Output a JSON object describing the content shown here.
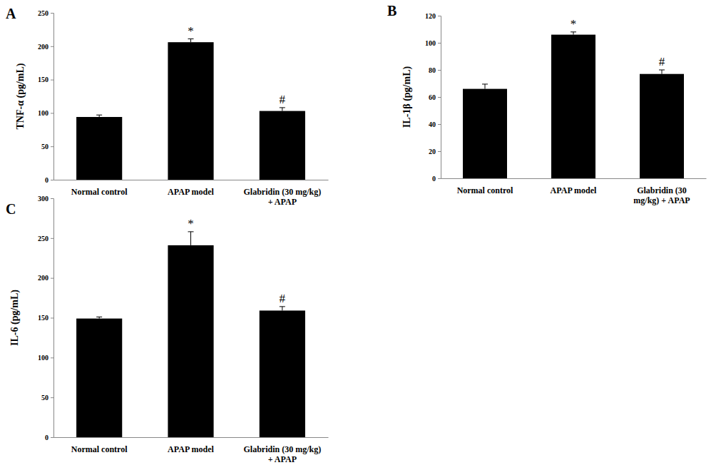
{
  "chart_data": [
    {
      "type": "bar",
      "title": "A",
      "y_label": "TNF-α (pg/mL)",
      "categories": [
        "Normal control",
        "APAP model",
        "Glabridin (30 mg/kg)\n+ APAP"
      ],
      "values": [
        94,
        206,
        103
      ],
      "errors": [
        3,
        5,
        5
      ],
      "annotations": [
        null,
        "*",
        "#"
      ],
      "color": "#000000",
      "ylim": [
        0,
        250
      ],
      "yticks": [
        0,
        50,
        100,
        150,
        200,
        250
      ],
      "grid": false
    },
    {
      "type": "bar",
      "title": "B",
      "y_label": "IL-1β (pg/mL)",
      "categories": [
        "Normal control",
        "APAP model",
        "Glabridin (30\nmg/kg) + APAP"
      ],
      "values": [
        66,
        106,
        77
      ],
      "errors": [
        3.5,
        2,
        3
      ],
      "annotations": [
        null,
        "*",
        "#"
      ],
      "color": "#000000",
      "ylim": [
        0,
        120
      ],
      "yticks": [
        0,
        20,
        40,
        60,
        80,
        100,
        120
      ],
      "grid": false
    },
    {
      "type": "bar",
      "title": "C",
      "y_label": "IL-6 (pg/mL)",
      "categories": [
        "Normal control",
        "APAP model",
        "Glabridin (30 mg/kg)\n+ APAP"
      ],
      "values": [
        149,
        241,
        159
      ],
      "errors": [
        2,
        17,
        5
      ],
      "annotations": [
        null,
        "*",
        "#"
      ],
      "color": "#000000",
      "ylim": [
        0,
        300
      ],
      "yticks": [
        0,
        50,
        100,
        150,
        200,
        250,
        300
      ],
      "grid": false
    }
  ]
}
